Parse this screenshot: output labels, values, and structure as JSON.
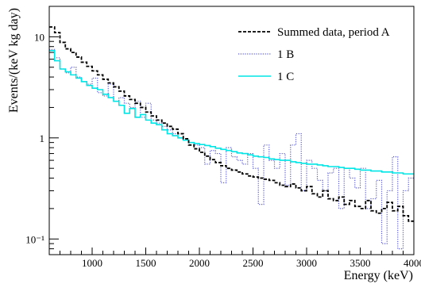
{
  "chart_data": {
    "type": "line",
    "title": "",
    "xlabel": "Energy (keV)",
    "ylabel": "Events/(keV kg day)",
    "x_scale": "linear",
    "y_scale": "log",
    "xlim": [
      600,
      4000
    ],
    "ylim": [
      0.07,
      20
    ],
    "x_ticks": [
      1000,
      1500,
      2000,
      2500,
      3000,
      3500,
      4000
    ],
    "y_tick_values": [
      0.1,
      1,
      10
    ],
    "y_tick_labels": [
      "10⁻¹",
      "1",
      "10"
    ],
    "grid": false,
    "legend_position": "top-right",
    "histogram": true,
    "bin_edges_start": 600,
    "bin_width": 50,
    "series": [
      {
        "name": "Summed data, period A",
        "color": "#000000",
        "style": "dashed",
        "values": [
          12.5,
          11.0,
          8.8,
          7.6,
          7.0,
          6.3,
          5.6,
          5.1,
          4.6,
          4.2,
          3.8,
          3.5,
          3.2,
          2.9,
          2.6,
          2.4,
          2.2,
          2.0,
          1.8,
          1.65,
          1.5,
          1.4,
          1.3,
          1.22,
          1.1,
          0.98,
          0.85,
          0.78,
          0.72,
          0.66,
          0.61,
          0.57,
          0.53,
          0.5,
          0.48,
          0.46,
          0.44,
          0.42,
          0.41,
          0.4,
          0.39,
          0.38,
          0.36,
          0.34,
          0.33,
          0.35,
          0.32,
          0.3,
          0.33,
          0.28,
          0.26,
          0.3,
          0.25,
          0.24,
          0.26,
          0.22,
          0.24,
          0.21,
          0.2,
          0.24,
          0.19,
          0.18,
          0.2,
          0.23,
          0.19,
          0.21,
          0.17,
          0.15
        ]
      },
      {
        "name": "1 B",
        "color": "#5a5ad8",
        "style": "dotted",
        "values": [
          7.5,
          6.2,
          4.8,
          4.4,
          5.0,
          4.0,
          3.6,
          3.4,
          3.9,
          2.8,
          2.6,
          3.4,
          2.3,
          2.5,
          2.2,
          2.0,
          2.3,
          1.6,
          2.2,
          1.5,
          1.4,
          1.3,
          1.2,
          1.1,
          1.0,
          0.95,
          0.9,
          0.85,
          0.8,
          0.55,
          0.75,
          0.7,
          0.36,
          0.8,
          0.65,
          0.6,
          0.55,
          0.7,
          0.5,
          0.22,
          0.85,
          0.6,
          0.5,
          0.7,
          0.34,
          0.85,
          1.1,
          0.3,
          0.6,
          0.5,
          0.38,
          0.3,
          0.45,
          0.5,
          0.2,
          0.5,
          0.4,
          0.32,
          0.5,
          0.2,
          0.25,
          0.38,
          0.09,
          0.3,
          0.65,
          0.08,
          0.3,
          0.4
        ]
      },
      {
        "name": "1 C",
        "color": "#00e5e5",
        "style": "solid",
        "values": [
          7.3,
          5.8,
          4.8,
          4.5,
          4.2,
          3.9,
          3.6,
          3.3,
          3.1,
          3.0,
          2.7,
          2.5,
          2.3,
          2.1,
          1.75,
          1.95,
          1.6,
          1.7,
          1.5,
          1.4,
          1.35,
          1.2,
          1.1,
          1.05,
          1.0,
          0.95,
          0.9,
          0.88,
          0.86,
          0.84,
          0.82,
          0.79,
          0.77,
          0.75,
          0.73,
          0.71,
          0.7,
          0.68,
          0.66,
          0.65,
          0.64,
          0.62,
          0.61,
          0.6,
          0.6,
          0.58,
          0.57,
          0.56,
          0.55,
          0.55,
          0.54,
          0.53,
          0.52,
          0.52,
          0.51,
          0.5,
          0.5,
          0.49,
          0.48,
          0.48,
          0.47,
          0.47,
          0.46,
          0.46,
          0.45,
          0.45,
          0.44,
          0.44
        ]
      }
    ]
  }
}
